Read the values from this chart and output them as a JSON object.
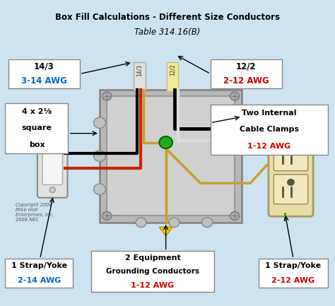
{
  "title_line1": "Box Fill Calculations - Different Size Conductors",
  "title_line2": "Table 314.16(B)",
  "bg_color": "#cde4f0",
  "black": "#000000",
  "red": "#cc0000",
  "blue": "#0066cc",
  "copyright": "Copyright 2008\nMike Holt\nEnterprises, Inc.\n2008 NEC"
}
